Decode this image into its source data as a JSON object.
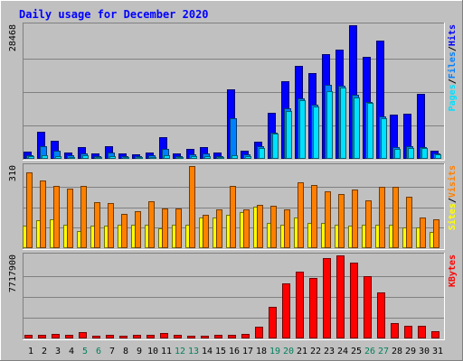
{
  "title": "Daily usage for December 2020",
  "chart_data": [
    {
      "type": "bar",
      "panel": "hits-files-pages",
      "categories": [
        "1",
        "2",
        "3",
        "4",
        "5",
        "6",
        "7",
        "8",
        "9",
        "10",
        "11",
        "12",
        "13",
        "14",
        "15",
        "16",
        "17",
        "18",
        "19",
        "20",
        "21",
        "22",
        "23",
        "24",
        "25",
        "26",
        "27",
        "28",
        "29",
        "30",
        "31"
      ],
      "weekend_days": [
        "5",
        "6",
        "12",
        "13",
        "19",
        "20",
        "26",
        "27"
      ],
      "ymax_label": "28468",
      "ylim": [
        0,
        28468
      ],
      "grid": true,
      "right_label": [
        "Pages",
        "Files",
        "Hits"
      ],
      "series": [
        {
          "name": "Hits",
          "color": "#0000ff",
          "values": [
            1500,
            5800,
            3900,
            1300,
            2500,
            1100,
            2700,
            1200,
            1000,
            1400,
            4600,
            1200,
            2100,
            2500,
            1300,
            14800,
            1800,
            3600,
            9900,
            16500,
            19800,
            18300,
            22300,
            23200,
            28468,
            21800,
            25200,
            9400,
            9600,
            13900,
            1700
          ]
        },
        {
          "name": "Files",
          "color": "#0080ff",
          "values": [
            700,
            2700,
            1700,
            700,
            1200,
            500,
            1300,
            600,
            500,
            700,
            2100,
            600,
            1000,
            1200,
            600,
            8600,
            900,
            2600,
            5600,
            10700,
            12800,
            11600,
            15700,
            15600,
            13700,
            12200,
            9100,
            2500,
            2600,
            2500,
            1100
          ]
        },
        {
          "name": "Pages",
          "color": "#00e0ff",
          "values": [
            500,
            800,
            600,
            400,
            700,
            300,
            500,
            400,
            300,
            400,
            700,
            400,
            500,
            600,
            400,
            800,
            600,
            2300,
            5300,
            10200,
            12500,
            11200,
            14400,
            15200,
            13000,
            12000,
            8700,
            2200,
            2300,
            2400,
            1000
          ]
        }
      ]
    },
    {
      "type": "bar",
      "panel": "visits-sites",
      "categories": [
        "1",
        "2",
        "3",
        "4",
        "5",
        "6",
        "7",
        "8",
        "9",
        "10",
        "11",
        "12",
        "13",
        "14",
        "15",
        "16",
        "17",
        "18",
        "19",
        "20",
        "21",
        "22",
        "23",
        "24",
        "25",
        "26",
        "27",
        "28",
        "29",
        "30",
        "31"
      ],
      "ymax_label": "310",
      "ylim": [
        0,
        310
      ],
      "grid": true,
      "right_label": [
        "Sites",
        "Visits"
      ],
      "series": [
        {
          "name": "Visits",
          "color": "#ff8000",
          "values": [
            285,
            255,
            235,
            225,
            235,
            175,
            170,
            130,
            140,
            178,
            150,
            150,
            310,
            125,
            145,
            235,
            145,
            165,
            160,
            145,
            250,
            237,
            215,
            205,
            220,
            180,
            230,
            230,
            195,
            115,
            110
          ]
        },
        {
          "name": "Sites",
          "color": "#ffff00",
          "values": [
            85,
            105,
            108,
            90,
            65,
            85,
            85,
            90,
            90,
            90,
            75,
            90,
            90,
            115,
            115,
            125,
            135,
            155,
            95,
            90,
            115,
            95,
            95,
            90,
            85,
            90,
            90,
            90,
            80,
            80,
            60
          ]
        }
      ]
    },
    {
      "type": "bar",
      "panel": "kbytes",
      "categories": [
        "1",
        "2",
        "3",
        "4",
        "5",
        "6",
        "7",
        "8",
        "9",
        "10",
        "11",
        "12",
        "13",
        "14",
        "15",
        "16",
        "17",
        "18",
        "19",
        "20",
        "21",
        "22",
        "23",
        "24",
        "25",
        "26",
        "27",
        "28",
        "29",
        "30",
        "31"
      ],
      "ymax_label": "7717900",
      "ylim": [
        0,
        7717900
      ],
      "grid": true,
      "right_label": [
        "KBytes"
      ],
      "series": [
        {
          "name": "KBytes",
          "color": "#ff0000",
          "values": [
            320000,
            360000,
            380000,
            310000,
            620000,
            210000,
            330000,
            290000,
            320000,
            310000,
            540000,
            370000,
            230000,
            280000,
            360000,
            350000,
            450000,
            1110000,
            2940000,
            5140000,
            6190000,
            5660000,
            7430000,
            7700000,
            7050000,
            5810000,
            4250000,
            1390000,
            1210000,
            1200000,
            650000
          ]
        }
      ]
    }
  ]
}
